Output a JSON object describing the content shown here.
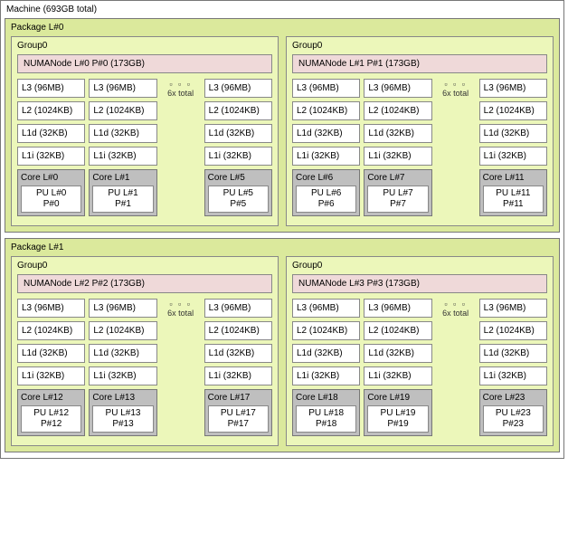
{
  "machine": {
    "title": "Machine (693GB total)",
    "packages": [
      {
        "title": "Package L#0",
        "groups": [
          {
            "title": "Group0",
            "numa": "NUMANode L#0 P#0 (173GB)",
            "ellipsis_caption": "6x total",
            "caches": {
              "l3": [
                "L3 (96MB)",
                "L3 (96MB)",
                "L3 (96MB)"
              ],
              "l2": [
                "L2 (1024KB)",
                "L2 (1024KB)",
                "L2 (1024KB)"
              ],
              "l1d": [
                "L1d (32KB)",
                "L1d (32KB)",
                "L1d (32KB)"
              ],
              "l1i": [
                "L1i (32KB)",
                "L1i (32KB)",
                "L1i (32KB)"
              ]
            },
            "cores": [
              {
                "title": "Core L#0",
                "pu_l": "PU L#0",
                "pu_p": "P#0"
              },
              {
                "title": "Core L#1",
                "pu_l": "PU L#1",
                "pu_p": "P#1"
              },
              {
                "title": "Core L#5",
                "pu_l": "PU L#5",
                "pu_p": "P#5"
              }
            ]
          },
          {
            "title": "Group0",
            "numa": "NUMANode L#1 P#1 (173GB)",
            "ellipsis_caption": "6x total",
            "caches": {
              "l3": [
                "L3 (96MB)",
                "L3 (96MB)",
                "L3 (96MB)"
              ],
              "l2": [
                "L2 (1024KB)",
                "L2 (1024KB)",
                "L2 (1024KB)"
              ],
              "l1d": [
                "L1d (32KB)",
                "L1d (32KB)",
                "L1d (32KB)"
              ],
              "l1i": [
                "L1i (32KB)",
                "L1i (32KB)",
                "L1i (32KB)"
              ]
            },
            "cores": [
              {
                "title": "Core L#6",
                "pu_l": "PU L#6",
                "pu_p": "P#6"
              },
              {
                "title": "Core L#7",
                "pu_l": "PU L#7",
                "pu_p": "P#7"
              },
              {
                "title": "Core L#11",
                "pu_l": "PU L#11",
                "pu_p": "P#11"
              }
            ]
          }
        ]
      },
      {
        "title": "Package L#1",
        "groups": [
          {
            "title": "Group0",
            "numa": "NUMANode L#2 P#2 (173GB)",
            "ellipsis_caption": "6x total",
            "caches": {
              "l3": [
                "L3 (96MB)",
                "L3 (96MB)",
                "L3 (96MB)"
              ],
              "l2": [
                "L2 (1024KB)",
                "L2 (1024KB)",
                "L2 (1024KB)"
              ],
              "l1d": [
                "L1d (32KB)",
                "L1d (32KB)",
                "L1d (32KB)"
              ],
              "l1i": [
                "L1i (32KB)",
                "L1i (32KB)",
                "L1i (32KB)"
              ]
            },
            "cores": [
              {
                "title": "Core L#12",
                "pu_l": "PU L#12",
                "pu_p": "P#12"
              },
              {
                "title": "Core L#13",
                "pu_l": "PU L#13",
                "pu_p": "P#13"
              },
              {
                "title": "Core L#17",
                "pu_l": "PU L#17",
                "pu_p": "P#17"
              }
            ]
          },
          {
            "title": "Group0",
            "numa": "NUMANode L#3 P#3 (173GB)",
            "ellipsis_caption": "6x total",
            "caches": {
              "l3": [
                "L3 (96MB)",
                "L3 (96MB)",
                "L3 (96MB)"
              ],
              "l2": [
                "L2 (1024KB)",
                "L2 (1024KB)",
                "L2 (1024KB)"
              ],
              "l1d": [
                "L1d (32KB)",
                "L1d (32KB)",
                "L1d (32KB)"
              ],
              "l1i": [
                "L1i (32KB)",
                "L1i (32KB)",
                "L1i (32KB)"
              ]
            },
            "cores": [
              {
                "title": "Core L#18",
                "pu_l": "PU L#18",
                "pu_p": "P#18"
              },
              {
                "title": "Core L#19",
                "pu_l": "PU L#19",
                "pu_p": "P#19"
              },
              {
                "title": "Core L#23",
                "pu_l": "PU L#23",
                "pu_p": "P#23"
              }
            ]
          }
        ]
      }
    ]
  },
  "colors": {
    "package_bg": "#dbe99c",
    "group_bg": "#ecf7ba",
    "numa_bg": "#efd9d9",
    "core_bg": "#bfbfbf",
    "cache_bg": "#ffffff",
    "border": "#777777"
  }
}
